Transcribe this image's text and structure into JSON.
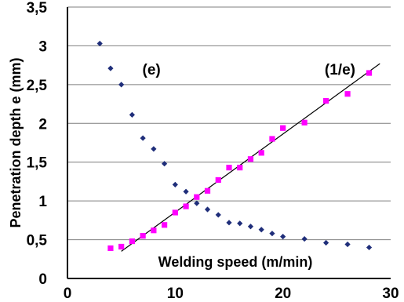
{
  "chart_data": {
    "type": "scatter",
    "xlabel": "Welding speed (m/min)",
    "ylabel": "Penetration depth e (mm)",
    "xlim": [
      0,
      30
    ],
    "ylim": [
      0,
      3.5
    ],
    "x_ticks": [
      "0",
      "10",
      "20",
      "30"
    ],
    "y_ticks": [
      "0",
      "0,5",
      "1",
      "1,5",
      "2",
      "2,5",
      "3",
      "3,5"
    ],
    "grid": "horizontal",
    "annotations": [
      {
        "label": "(e)",
        "x": 7.8,
        "y": 2.7
      },
      {
        "label": "(1/e)",
        "x": 25.3,
        "y": 2.7
      }
    ],
    "series": [
      {
        "marker": "diamond",
        "color": "#1f2e7a",
        "points": [
          [
            3,
            3.03
          ],
          [
            4,
            2.71
          ],
          [
            5,
            2.5
          ],
          [
            6,
            2.11
          ],
          [
            7,
            1.81
          ],
          [
            8,
            1.67
          ],
          [
            9,
            1.48
          ],
          [
            10,
            1.21
          ],
          [
            11,
            1.12
          ],
          [
            12,
            0.97
          ],
          [
            13,
            0.89
          ],
          [
            14,
            0.82
          ],
          [
            15,
            0.72
          ],
          [
            16,
            0.71
          ],
          [
            17,
            0.67
          ],
          [
            18,
            0.63
          ],
          [
            19,
            0.58
          ],
          [
            20,
            0.54
          ],
          [
            22,
            0.51
          ],
          [
            24,
            0.46
          ],
          [
            26,
            0.44
          ],
          [
            28,
            0.4
          ]
        ]
      },
      {
        "marker": "square",
        "color": "#ff00ff",
        "points": [
          [
            4,
            0.39
          ],
          [
            5,
            0.41
          ],
          [
            6,
            0.48
          ],
          [
            7,
            0.55
          ],
          [
            8,
            0.62
          ],
          [
            9,
            0.69
          ],
          [
            10,
            0.85
          ],
          [
            11,
            0.93
          ],
          [
            12,
            1.05
          ],
          [
            13,
            1.13
          ],
          [
            14,
            1.27
          ],
          [
            15,
            1.43
          ],
          [
            16,
            1.43
          ],
          [
            17,
            1.54
          ],
          [
            18,
            1.62
          ],
          [
            19,
            1.8
          ],
          [
            20,
            1.94
          ],
          [
            22,
            2.01
          ],
          [
            24,
            2.29
          ],
          [
            26,
            2.38
          ],
          [
            28,
            2.65
          ]
        ]
      }
    ],
    "trendline": {
      "color": "#000000",
      "from": [
        5,
        0.35
      ],
      "to": [
        29,
        2.77
      ]
    }
  }
}
